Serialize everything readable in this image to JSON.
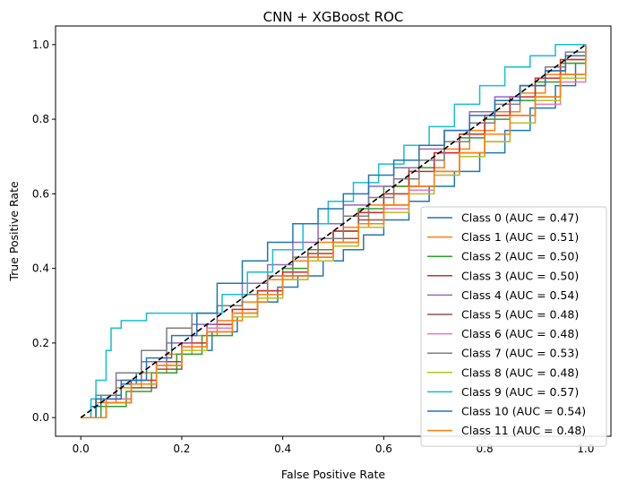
{
  "chart_data": {
    "type": "line",
    "title": "CNN + XGBoost ROC",
    "xlabel": "False Positive Rate",
    "ylabel": "True Positive Rate",
    "xlim": [
      -0.05,
      1.05
    ],
    "ylim": [
      -0.05,
      1.05
    ],
    "xticks": [
      "0.0",
      "0.2",
      "0.4",
      "0.6",
      "0.8",
      "1.0"
    ],
    "yticks": [
      "0.0",
      "0.2",
      "0.4",
      "0.6",
      "0.8",
      "1.0"
    ],
    "grid": false,
    "legend_position": "lower right",
    "reference_line": {
      "style": "dashed",
      "color": "#000000",
      "points": [
        [
          0,
          0
        ],
        [
          1,
          1
        ]
      ]
    },
    "series": [
      {
        "name": "Class 0 (AUC = 0.47)",
        "color": "#1f77b4",
        "points": [
          [
            0,
            0
          ],
          [
            0.02,
            0.03
          ],
          [
            0.04,
            0.06
          ],
          [
            0.08,
            0.09
          ],
          [
            0.11,
            0.12
          ],
          [
            0.15,
            0.15
          ],
          [
            0.2,
            0.18
          ],
          [
            0.26,
            0.23
          ],
          [
            0.31,
            0.27
          ],
          [
            0.35,
            0.31
          ],
          [
            0.39,
            0.35
          ],
          [
            0.43,
            0.38
          ],
          [
            0.48,
            0.42
          ],
          [
            0.52,
            0.45
          ],
          [
            0.56,
            0.49
          ],
          [
            0.6,
            0.53
          ],
          [
            0.65,
            0.58
          ],
          [
            0.69,
            0.62
          ],
          [
            0.74,
            0.66
          ],
          [
            0.79,
            0.71
          ],
          [
            0.84,
            0.77
          ],
          [
            0.89,
            0.83
          ],
          [
            0.94,
            0.89
          ],
          [
            0.98,
            0.95
          ],
          [
            1,
            1
          ]
        ]
      },
      {
        "name": "Class 1 (AUC = 0.51)",
        "color": "#ff7f0e",
        "points": [
          [
            0,
            0
          ],
          [
            0.03,
            0.04
          ],
          [
            0.07,
            0.08
          ],
          [
            0.12,
            0.12
          ],
          [
            0.17,
            0.17
          ],
          [
            0.22,
            0.22
          ],
          [
            0.27,
            0.26
          ],
          [
            0.32,
            0.31
          ],
          [
            0.37,
            0.37
          ],
          [
            0.42,
            0.42
          ],
          [
            0.47,
            0.47
          ],
          [
            0.52,
            0.51
          ],
          [
            0.57,
            0.57
          ],
          [
            0.62,
            0.62
          ],
          [
            0.67,
            0.67
          ],
          [
            0.72,
            0.72
          ],
          [
            0.77,
            0.77
          ],
          [
            0.82,
            0.82
          ],
          [
            0.87,
            0.87
          ],
          [
            0.92,
            0.92
          ],
          [
            0.96,
            0.96
          ],
          [
            1,
            1
          ]
        ]
      },
      {
        "name": "Class 2 (AUC = 0.50)",
        "color": "#2ca02c",
        "points": [
          [
            0,
            0
          ],
          [
            0.04,
            0.03
          ],
          [
            0.09,
            0.07
          ],
          [
            0.14,
            0.12
          ],
          [
            0.19,
            0.17
          ],
          [
            0.24,
            0.22
          ],
          [
            0.3,
            0.28
          ],
          [
            0.35,
            0.34
          ],
          [
            0.4,
            0.4
          ],
          [
            0.45,
            0.45
          ],
          [
            0.5,
            0.5
          ],
          [
            0.55,
            0.56
          ],
          [
            0.6,
            0.62
          ],
          [
            0.65,
            0.67
          ],
          [
            0.7,
            0.71
          ],
          [
            0.75,
            0.75
          ],
          [
            0.8,
            0.8
          ],
          [
            0.85,
            0.85
          ],
          [
            0.9,
            0.9
          ],
          [
            0.95,
            0.95
          ],
          [
            1,
            1
          ]
        ]
      },
      {
        "name": "Class 3 (AUC = 0.50)",
        "color": "#d62728",
        "points": [
          [
            0,
            0
          ],
          [
            0.05,
            0.05
          ],
          [
            0.1,
            0.1
          ],
          [
            0.15,
            0.15
          ],
          [
            0.2,
            0.2
          ],
          [
            0.25,
            0.25
          ],
          [
            0.3,
            0.29
          ],
          [
            0.35,
            0.34
          ],
          [
            0.4,
            0.39
          ],
          [
            0.45,
            0.44
          ],
          [
            0.5,
            0.5
          ],
          [
            0.55,
            0.55
          ],
          [
            0.6,
            0.6
          ],
          [
            0.65,
            0.66
          ],
          [
            0.7,
            0.71
          ],
          [
            0.75,
            0.76
          ],
          [
            0.8,
            0.81
          ],
          [
            0.85,
            0.86
          ],
          [
            0.9,
            0.91
          ],
          [
            0.95,
            0.96
          ],
          [
            1,
            1
          ]
        ]
      },
      {
        "name": "Class 4 (AUC = 0.54)",
        "color": "#9467bd",
        "points": [
          [
            0,
            0
          ],
          [
            0.03,
            0.05
          ],
          [
            0.07,
            0.1
          ],
          [
            0.12,
            0.15
          ],
          [
            0.17,
            0.2
          ],
          [
            0.22,
            0.25
          ],
          [
            0.27,
            0.3
          ],
          [
            0.32,
            0.36
          ],
          [
            0.37,
            0.41
          ],
          [
            0.42,
            0.47
          ],
          [
            0.47,
            0.52
          ],
          [
            0.52,
            0.57
          ],
          [
            0.57,
            0.62
          ],
          [
            0.62,
            0.67
          ],
          [
            0.67,
            0.72
          ],
          [
            0.72,
            0.77
          ],
          [
            0.77,
            0.82
          ],
          [
            0.82,
            0.86
          ],
          [
            0.87,
            0.89
          ],
          [
            0.92,
            0.93
          ],
          [
            0.96,
            0.97
          ],
          [
            1,
            1
          ]
        ]
      },
      {
        "name": "Class 5 (AUC = 0.48)",
        "color": "#8c564b",
        "points": [
          [
            0,
            0
          ],
          [
            0.05,
            0.04
          ],
          [
            0.1,
            0.08
          ],
          [
            0.15,
            0.13
          ],
          [
            0.2,
            0.18
          ],
          [
            0.25,
            0.23
          ],
          [
            0.3,
            0.28
          ],
          [
            0.35,
            0.33
          ],
          [
            0.4,
            0.38
          ],
          [
            0.45,
            0.43
          ],
          [
            0.5,
            0.48
          ],
          [
            0.55,
            0.53
          ],
          [
            0.6,
            0.57
          ],
          [
            0.65,
            0.62
          ],
          [
            0.7,
            0.66
          ],
          [
            0.75,
            0.71
          ],
          [
            0.8,
            0.76
          ],
          [
            0.85,
            0.81
          ],
          [
            0.9,
            0.86
          ],
          [
            0.95,
            0.92
          ],
          [
            1,
            1
          ]
        ]
      },
      {
        "name": "Class 6 (AUC = 0.48)",
        "color": "#e377c2",
        "points": [
          [
            0,
            0
          ],
          [
            0.05,
            0.05
          ],
          [
            0.1,
            0.09
          ],
          [
            0.15,
            0.14
          ],
          [
            0.2,
            0.19
          ],
          [
            0.25,
            0.24
          ],
          [
            0.3,
            0.28
          ],
          [
            0.35,
            0.33
          ],
          [
            0.4,
            0.37
          ],
          [
            0.45,
            0.42
          ],
          [
            0.5,
            0.47
          ],
          [
            0.55,
            0.52
          ],
          [
            0.6,
            0.56
          ],
          [
            0.65,
            0.61
          ],
          [
            0.7,
            0.65
          ],
          [
            0.75,
            0.7
          ],
          [
            0.8,
            0.74
          ],
          [
            0.85,
            0.79
          ],
          [
            0.9,
            0.84
          ],
          [
            0.95,
            0.9
          ],
          [
            1,
            0.97
          ]
        ]
      },
      {
        "name": "Class 7 (AUC = 0.53)",
        "color": "#7f7f7f",
        "points": [
          [
            0,
            0
          ],
          [
            0.03,
            0.06
          ],
          [
            0.07,
            0.12
          ],
          [
            0.12,
            0.18
          ],
          [
            0.17,
            0.24
          ],
          [
            0.22,
            0.28
          ],
          [
            0.27,
            0.3
          ],
          [
            0.32,
            0.33
          ],
          [
            0.37,
            0.38
          ],
          [
            0.42,
            0.43
          ],
          [
            0.47,
            0.48
          ],
          [
            0.52,
            0.54
          ],
          [
            0.57,
            0.59
          ],
          [
            0.62,
            0.64
          ],
          [
            0.67,
            0.69
          ],
          [
            0.72,
            0.74
          ],
          [
            0.77,
            0.79
          ],
          [
            0.82,
            0.84
          ],
          [
            0.87,
            0.89
          ],
          [
            0.92,
            0.94
          ],
          [
            0.96,
            0.98
          ],
          [
            1,
            1
          ]
        ]
      },
      {
        "name": "Class 8 (AUC = 0.48)",
        "color": "#bcbd22",
        "points": [
          [
            0,
            0
          ],
          [
            0.05,
            0.04
          ],
          [
            0.1,
            0.09
          ],
          [
            0.15,
            0.14
          ],
          [
            0.2,
            0.18
          ],
          [
            0.25,
            0.23
          ],
          [
            0.3,
            0.27
          ],
          [
            0.35,
            0.32
          ],
          [
            0.4,
            0.37
          ],
          [
            0.45,
            0.42
          ],
          [
            0.5,
            0.46
          ],
          [
            0.55,
            0.51
          ],
          [
            0.6,
            0.55
          ],
          [
            0.65,
            0.6
          ],
          [
            0.7,
            0.65
          ],
          [
            0.75,
            0.7
          ],
          [
            0.8,
            0.74
          ],
          [
            0.85,
            0.79
          ],
          [
            0.9,
            0.85
          ],
          [
            0.95,
            0.91
          ],
          [
            1,
            0.98
          ]
        ]
      },
      {
        "name": "Class 9 (AUC = 0.57)",
        "color": "#17becf",
        "points": [
          [
            0,
            0
          ],
          [
            0.02,
            0.05
          ],
          [
            0.03,
            0.1
          ],
          [
            0.05,
            0.18
          ],
          [
            0.06,
            0.24
          ],
          [
            0.08,
            0.26
          ],
          [
            0.13,
            0.28
          ],
          [
            0.22,
            0.28
          ],
          [
            0.28,
            0.33
          ],
          [
            0.33,
            0.39
          ],
          [
            0.38,
            0.45
          ],
          [
            0.44,
            0.52
          ],
          [
            0.49,
            0.58
          ],
          [
            0.54,
            0.63
          ],
          [
            0.59,
            0.68
          ],
          [
            0.64,
            0.73
          ],
          [
            0.69,
            0.78
          ],
          [
            0.74,
            0.84
          ],
          [
            0.79,
            0.89
          ],
          [
            0.84,
            0.94
          ],
          [
            0.89,
            0.97
          ],
          [
            0.94,
            1
          ],
          [
            1,
            1
          ]
        ]
      },
      {
        "name": "Class 10 (AUC = 0.54)",
        "color": "#1f77b4",
        "points": [
          [
            0,
            0
          ],
          [
            0.03,
            0.05
          ],
          [
            0.08,
            0.1
          ],
          [
            0.13,
            0.16
          ],
          [
            0.18,
            0.22
          ],
          [
            0.23,
            0.28
          ],
          [
            0.27,
            0.36
          ],
          [
            0.32,
            0.42
          ],
          [
            0.37,
            0.47
          ],
          [
            0.42,
            0.52
          ],
          [
            0.47,
            0.56
          ],
          [
            0.52,
            0.6
          ],
          [
            0.57,
            0.65
          ],
          [
            0.62,
            0.69
          ],
          [
            0.67,
            0.73
          ],
          [
            0.72,
            0.77
          ],
          [
            0.77,
            0.81
          ],
          [
            0.82,
            0.85
          ],
          [
            0.87,
            0.89
          ],
          [
            0.92,
            0.93
          ],
          [
            0.96,
            0.97
          ],
          [
            1,
            1
          ]
        ]
      },
      {
        "name": "Class 11 (AUC = 0.48)",
        "color": "#ff7f0e",
        "points": [
          [
            0,
            0
          ],
          [
            0.05,
            0.04
          ],
          [
            0.1,
            0.09
          ],
          [
            0.15,
            0.14
          ],
          [
            0.2,
            0.19
          ],
          [
            0.25,
            0.23
          ],
          [
            0.3,
            0.28
          ],
          [
            0.35,
            0.33
          ],
          [
            0.4,
            0.38
          ],
          [
            0.45,
            0.43
          ],
          [
            0.5,
            0.47
          ],
          [
            0.55,
            0.52
          ],
          [
            0.6,
            0.57
          ],
          [
            0.65,
            0.62
          ],
          [
            0.7,
            0.66
          ],
          [
            0.75,
            0.71
          ],
          [
            0.8,
            0.76
          ],
          [
            0.85,
            0.81
          ],
          [
            0.9,
            0.86
          ],
          [
            0.95,
            0.92
          ],
          [
            1,
            1
          ]
        ]
      }
    ]
  }
}
